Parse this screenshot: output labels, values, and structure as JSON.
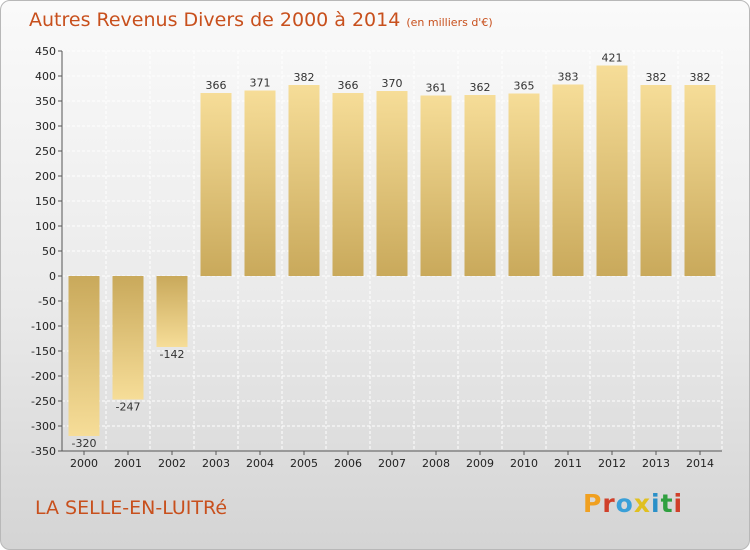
{
  "header": {
    "title": "Autres Revenus Divers de 2000 à 2014",
    "unit": "(en milliers d'€)"
  },
  "footer": {
    "location": "LA SELLE-EN-LUITRé",
    "brand": "Proxiti"
  },
  "chart_data": {
    "type": "bar",
    "title": "Autres Revenus Divers de 2000 à 2014",
    "subtitle": "(en milliers d'€)",
    "categories": [
      "2000",
      "2001",
      "2002",
      "2003",
      "2004",
      "2005",
      "2006",
      "2007",
      "2008",
      "2009",
      "2010",
      "2011",
      "2012",
      "2013",
      "2014"
    ],
    "values": [
      -320,
      -247,
      -142,
      366,
      371,
      382,
      366,
      370,
      361,
      362,
      365,
      383,
      421,
      382,
      382
    ],
    "value_labels": [
      "-320",
      "-247",
      "-142",
      "366",
      "371",
      "382",
      "366",
      "370",
      "361",
      "362",
      "365",
      "383",
      "421",
      "382",
      "382"
    ],
    "ylim": [
      -350,
      450
    ],
    "yticks": [
      -350,
      -300,
      -250,
      -200,
      -150,
      -100,
      -50,
      0,
      50,
      100,
      150,
      200,
      250,
      300,
      350,
      400,
      450
    ],
    "ytick_labels": [
      "-350",
      "-300",
      "-250",
      "-200",
      "-150",
      "-100",
      "-50",
      "0",
      "50",
      "100",
      "150",
      "200",
      "250",
      "300",
      "350",
      "400",
      "450"
    ],
    "grid": true,
    "colors": {
      "bar_light": "#f6dd98",
      "bar_dark": "#c9a95b",
      "title": "#c8501d"
    }
  }
}
